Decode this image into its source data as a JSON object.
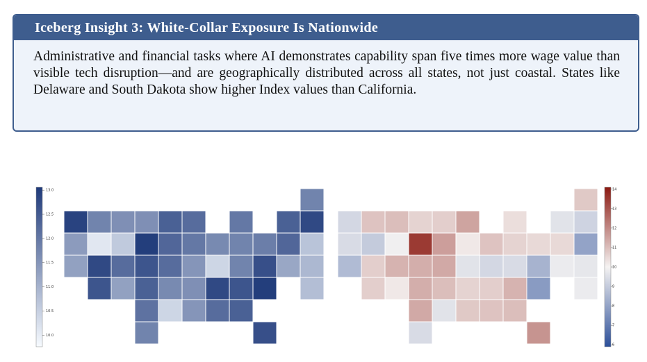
{
  "document": {
    "title": "Iceberg Insight 3: White-Collar Exposure Is Nationwide",
    "body": "Administrative and financial tasks where AI demonstrates capability span five times more wage value than visible tech disruption—and are geographically distributed across all states, not just coastal. States like Delaware and South Dakota show higher Index values than California."
  },
  "figure": {
    "maps": [
      {
        "colorbar": {
          "lim": [
            9.76,
            13.06
          ],
          "ticks": [
            {
              "value": 13.0,
              "label": "13.0"
            },
            {
              "value": 12.5,
              "label": "12.5"
            },
            {
              "value": 12.0,
              "label": "12.0"
            },
            {
              "value": 11.5,
              "label": "11.5"
            },
            {
              "value": 11.0,
              "label": "11.0"
            },
            {
              "value": 10.5,
              "label": "10.5"
            },
            {
              "value": 10.0,
              "label": "10.0"
            }
          ]
        },
        "values": [
          11.8,
          12.9,
          11.8,
          11.6,
          11.6,
          12.4,
          12.2,
          12.0,
          12.4,
          12.8,
          11.4,
          10.1,
          10.6,
          13.0,
          12.3,
          12.0,
          11.7,
          11.8,
          11.9,
          12.3,
          10.7,
          11.3,
          12.8,
          12.2,
          12.6,
          12.2,
          11.5,
          10.4,
          11.8,
          12.7,
          11.2,
          10.9,
          12.6,
          11.3,
          12.4,
          11.7,
          11.6,
          12.8,
          12.6,
          13.0,
          10.8,
          12.1,
          10.4,
          11.5,
          12.2,
          12.4,
          11.8,
          12.7
        ]
      },
      {
        "colorbar": {
          "lim": [
            5.9,
            14.1
          ],
          "ticks": [
            14,
            13,
            12,
            11,
            10,
            9,
            8,
            7,
            6
          ]
        },
        "values": [
          10.8,
          9.3,
          10.9,
          11.0,
          10.6,
          10.7,
          11.5,
          10.4,
          9.6,
          9.2,
          9.4,
          9.0,
          9.9,
          13.5,
          11.6,
          10.2,
          10.9,
          10.6,
          10.5,
          10.5,
          8.0,
          8.6,
          10.7,
          11.2,
          11.3,
          11.4,
          9.6,
          9.3,
          9.4,
          8.4,
          9.8,
          9.7,
          10.7,
          10.2,
          11.3,
          11.0,
          10.6,
          10.7,
          11.2,
          7.8,
          9.8,
          11.4,
          9.6,
          10.8,
          10.9,
          11.0,
          9.4,
          11.8
        ]
      }
    ]
  }
}
